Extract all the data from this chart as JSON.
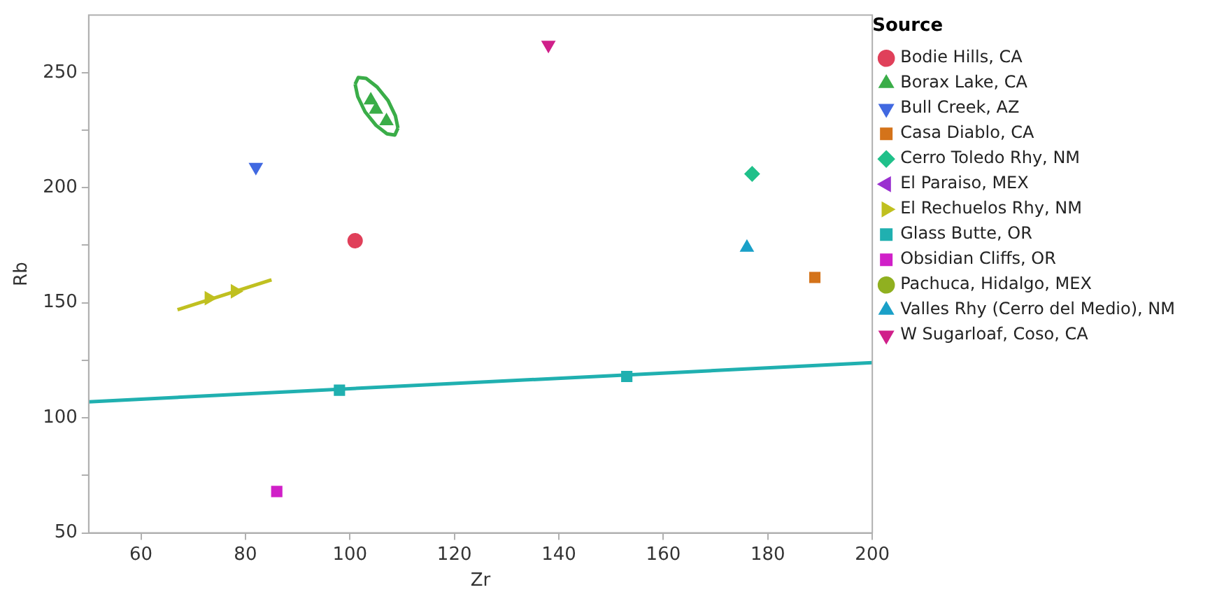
{
  "chart_data": {
    "type": "scatter",
    "xlabel": "Zr",
    "ylabel": "Rb",
    "legend_title": "Source",
    "xlim": [
      50,
      200
    ],
    "xticks": [
      60,
      80,
      100,
      120,
      140,
      160,
      180,
      200
    ],
    "ylim": [
      50,
      275
    ],
    "yticks": [
      50,
      {
        "value": 75,
        "label": null
      },
      100,
      {
        "value": 125,
        "label": null
      },
      150,
      {
        "value": 175,
        "label": null
      },
      200,
      {
        "value": 225,
        "label": null
      },
      250
    ],
    "grid": false,
    "legend": "right",
    "series": [
      {
        "name": "Bodie Hills, CA",
        "color": "#e0405a",
        "marker": "circle",
        "x": [
          101
        ],
        "values": [
          177
        ]
      },
      {
        "name": "Borax Lake, CA",
        "color": "#3aad48",
        "marker": "triangle",
        "x": [
          104,
          105,
          107
        ],
        "values": [
          238,
          234,
          229
        ]
      },
      {
        "name": "Bull Creek, AZ",
        "color": "#4169e1",
        "marker": "triangle-down",
        "x": [
          82
        ],
        "values": [
          209
        ]
      },
      {
        "name": "Casa Diablo, CA",
        "color": "#d4731a",
        "marker": "square",
        "x": [
          189
        ],
        "values": [
          161
        ]
      },
      {
        "name": "Cerro Toledo Rhy, NM",
        "color": "#20c08a",
        "marker": "diamond",
        "x": [
          177
        ],
        "values": [
          206
        ]
      },
      {
        "name": "El Paraiso, MEX",
        "color": "#9a30d0",
        "marker": "triangle-left"
      },
      {
        "name": "El Rechuelos Rhy, NM",
        "color": "#c0c020",
        "marker": "triangle-right",
        "x": [
          73,
          78
        ],
        "values": [
          152,
          155
        ]
      },
      {
        "name": "Glass Butte, OR",
        "color": "#20b0b0",
        "marker": "square",
        "x": [
          98,
          153
        ],
        "values": [
          112,
          118
        ]
      },
      {
        "name": "Obsidian Cliffs, OR",
        "color": "#d020c8",
        "marker": "square",
        "x": [
          86
        ],
        "values": [
          68
        ]
      },
      {
        "name": "Pachuca, Hidalgo, MEX",
        "color": "#90b020",
        "marker": "circle"
      },
      {
        "name": "Valles Rhy (Cerro del Medio), NM",
        "color": "#1aa0c8",
        "marker": "triangle",
        "x": [
          176
        ],
        "values": [
          174
        ]
      },
      {
        "name": "W Sugarloaf, Coso, CA",
        "color": "#d0208a",
        "marker": "triangle-down",
        "x": [
          138
        ],
        "values": [
          262
        ]
      },
      {
        "type": "line",
        "color": "#c0c020",
        "marker": "none",
        "x": [
          67,
          85
        ],
        "values": [
          147,
          160
        ]
      },
      {
        "type": "line",
        "color": "#20b0b0",
        "marker": "none",
        "x": [
          50,
          200
        ],
        "values": [
          107,
          124
        ]
      },
      {
        "type": "line",
        "color": "#3aad48",
        "marker": "none",
        "x": [
          101.0,
          101.5,
          102.9,
          105.0,
          107.1,
          108.6,
          109.2
        ],
        "values": [
          245.0,
          239.6,
          233.0,
          227.1,
          223.4,
          222.9,
          225.9
        ]
      },
      {
        "type": "line",
        "color": "#3aad48",
        "marker": "none",
        "x": [
          101.0,
          101.6,
          103.1,
          105.2,
          107.3,
          108.7,
          109.2
        ],
        "values": [
          245.0,
          247.9,
          247.5,
          243.8,
          237.9,
          231.3,
          225.9
        ]
      }
    ]
  }
}
